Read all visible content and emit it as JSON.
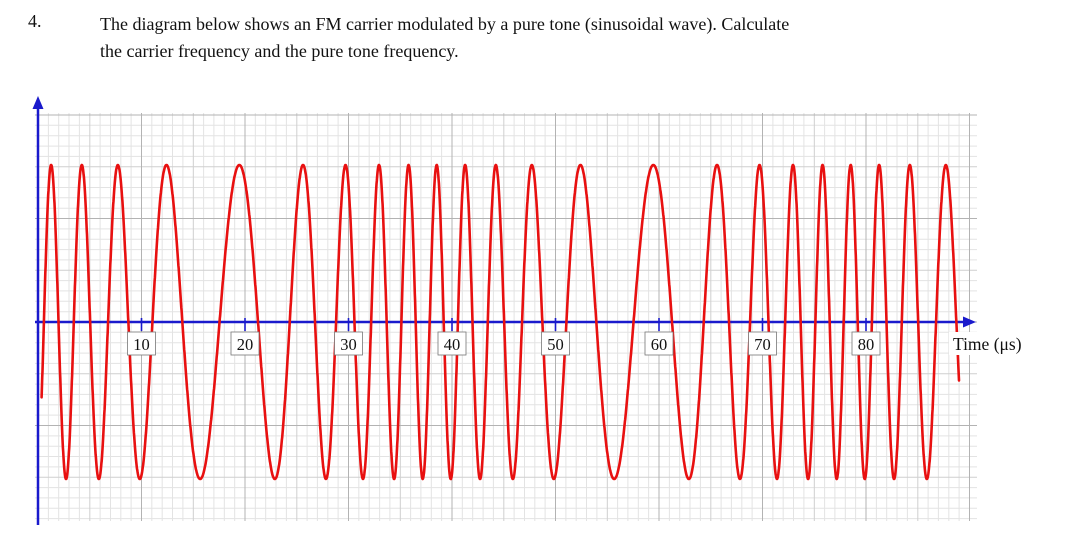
{
  "question": {
    "number": "4.",
    "line1": "The diagram below shows an FM carrier modulated by a pure tone (sinusoidal wave). Calculate",
    "line2": "the carrier frequency and the pure tone frequency."
  },
  "chart_data": {
    "type": "line",
    "title": "",
    "xlabel": "Time (μs)",
    "ylabel": "",
    "x_ticks": [
      10,
      20,
      30,
      40,
      50,
      60,
      70,
      80
    ],
    "x_range": [
      0,
      90
    ],
    "grid": "on",
    "legend": "none",
    "waveform": {
      "kind": "fm-sinusoid",
      "description": "FM carrier modulated by a pure tone; instantaneous frequency f(t) = fc + df*cos(2*pi*(t - t_fast)/Tm), amplitude constant",
      "carrier_freq_cycles_per_us": 0.25,
      "freq_deviation_cycles_per_us": 0.12,
      "modulation_period_us": 40,
      "t_fast_us": 38,
      "t_start_us": 0.35,
      "t_end_us": 89,
      "start_phase_rad": -0.5,
      "amplitude": 1
    },
    "colors": {
      "waveform": "#e81010",
      "axis": "#1a1acc",
      "grid_minor": "#e3e3e3",
      "grid_medium": "#cfcfcf",
      "grid_major": "#b3b3b3",
      "label_text": "#111111",
      "label_box_border": "#777777"
    }
  }
}
